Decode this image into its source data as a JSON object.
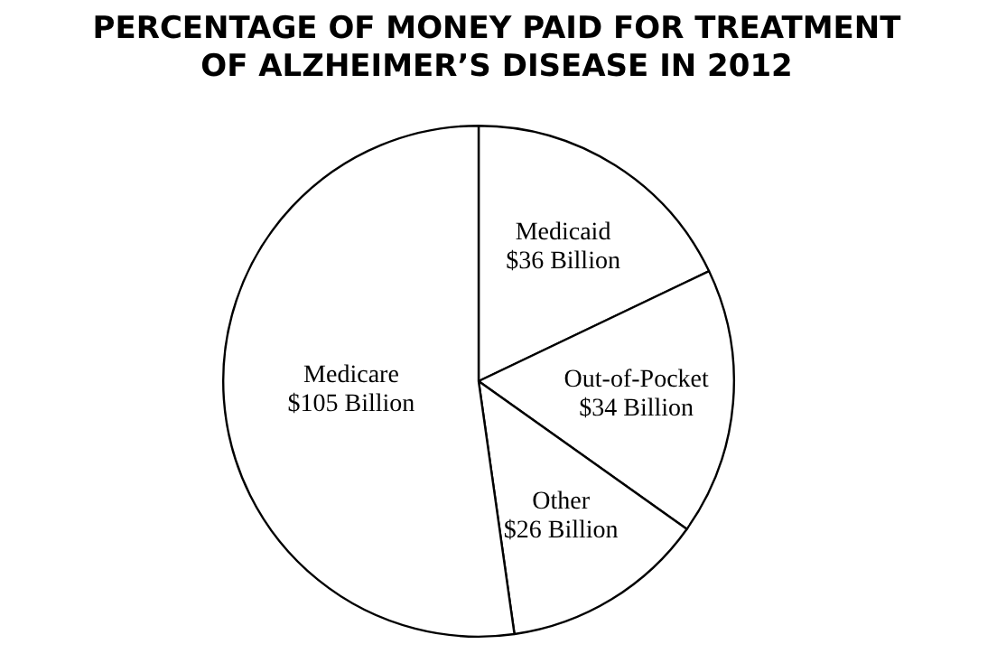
{
  "chart_data": {
    "type": "pie",
    "title": "PERCENTAGE OF MONEY PAID FOR TREATMENT OF ALZHEIMER’S DISEASE IN 2012",
    "categories": [
      "Medicaid",
      "Out-of-Pocket",
      "Other",
      "Medicare"
    ],
    "values": [
      36,
      34,
      26,
      105
    ],
    "value_labels": [
      "$36 Billion",
      "$34 Billion",
      "$26 Billion",
      "$105 Billion"
    ],
    "colors": [
      "#ffffff",
      "#ffffff",
      "#ffffff",
      "#ffffff"
    ],
    "legend": false
  }
}
